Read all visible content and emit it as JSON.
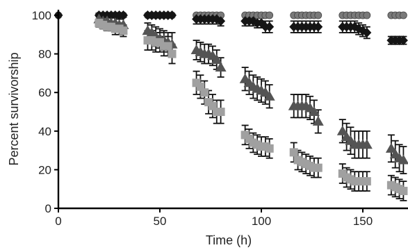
{
  "chart_data": {
    "type": "scatter",
    "xlabel": "Time (h)",
    "ylabel": "Percent survivorship",
    "xlim": [
      0,
      170
    ],
    "ylim": [
      0,
      100
    ],
    "xticks": [
      0,
      50,
      100,
      150
    ],
    "yticks": [
      0,
      20,
      40,
      60,
      80,
      100
    ],
    "xtick_labels": [
      "0",
      "50",
      "100",
      "150"
    ],
    "ytick_labels": [
      "0",
      "20",
      "40",
      "60",
      "80",
      "100"
    ],
    "grid": false,
    "series": [
      {
        "marker": "circle",
        "color": "#7a7a7a",
        "points": [
          {
            "x": 0,
            "y": 100,
            "err": 0
          },
          {
            "x": 20,
            "y": 100,
            "err": 0
          },
          {
            "x": 22,
            "y": 100,
            "err": 0
          },
          {
            "x": 24,
            "y": 100,
            "err": 0
          },
          {
            "x": 26,
            "y": 100,
            "err": 0
          },
          {
            "x": 28,
            "y": 100,
            "err": 0
          },
          {
            "x": 30,
            "y": 100,
            "err": 0
          },
          {
            "x": 32,
            "y": 100,
            "err": 0
          },
          {
            "x": 44,
            "y": 100,
            "err": 0
          },
          {
            "x": 46,
            "y": 100,
            "err": 0
          },
          {
            "x": 48,
            "y": 100,
            "err": 0
          },
          {
            "x": 50,
            "y": 100,
            "err": 0
          },
          {
            "x": 52,
            "y": 100,
            "err": 0
          },
          {
            "x": 54,
            "y": 100,
            "err": 0
          },
          {
            "x": 56,
            "y": 100,
            "err": 0
          },
          {
            "x": 68,
            "y": 100,
            "err": 0
          },
          {
            "x": 70,
            "y": 100,
            "err": 0
          },
          {
            "x": 72,
            "y": 100,
            "err": 0
          },
          {
            "x": 74,
            "y": 100,
            "err": 0
          },
          {
            "x": 76,
            "y": 100,
            "err": 0
          },
          {
            "x": 78,
            "y": 100,
            "err": 0
          },
          {
            "x": 80,
            "y": 100,
            "err": 0
          },
          {
            "x": 92,
            "y": 100,
            "err": 0
          },
          {
            "x": 94,
            "y": 100,
            "err": 0
          },
          {
            "x": 96,
            "y": 100,
            "err": 0
          },
          {
            "x": 98,
            "y": 100,
            "err": 0
          },
          {
            "x": 100,
            "y": 100,
            "err": 0
          },
          {
            "x": 102,
            "y": 100,
            "err": 0
          },
          {
            "x": 104,
            "y": 100,
            "err": 0
          },
          {
            "x": 116,
            "y": 100,
            "err": 0
          },
          {
            "x": 118,
            "y": 100,
            "err": 0
          },
          {
            "x": 120,
            "y": 100,
            "err": 0
          },
          {
            "x": 122,
            "y": 100,
            "err": 0
          },
          {
            "x": 124,
            "y": 100,
            "err": 0
          },
          {
            "x": 126,
            "y": 100,
            "err": 0
          },
          {
            "x": 128,
            "y": 100,
            "err": 0
          },
          {
            "x": 140,
            "y": 100,
            "err": 0
          },
          {
            "x": 142,
            "y": 100,
            "err": 0
          },
          {
            "x": 144,
            "y": 100,
            "err": 0
          },
          {
            "x": 146,
            "y": 100,
            "err": 0
          },
          {
            "x": 148,
            "y": 100,
            "err": 0
          },
          {
            "x": 150,
            "y": 100,
            "err": 0
          },
          {
            "x": 152,
            "y": 100,
            "err": 0
          },
          {
            "x": 164,
            "y": 100,
            "err": 0
          },
          {
            "x": 166,
            "y": 100,
            "err": 0
          },
          {
            "x": 168,
            "y": 100,
            "err": 0
          },
          {
            "x": 170,
            "y": 100,
            "err": 0
          }
        ]
      },
      {
        "marker": "diamond",
        "color": "#151515",
        "points": [
          {
            "x": 0,
            "y": 100,
            "err": 0
          },
          {
            "x": 20,
            "y": 100,
            "err": 0
          },
          {
            "x": 22,
            "y": 100,
            "err": 0
          },
          {
            "x": 24,
            "y": 100,
            "err": 0
          },
          {
            "x": 26,
            "y": 100,
            "err": 0
          },
          {
            "x": 28,
            "y": 100,
            "err": 0
          },
          {
            "x": 30,
            "y": 100,
            "err": 0
          },
          {
            "x": 32,
            "y": 100,
            "err": 0
          },
          {
            "x": 44,
            "y": 100,
            "err": 0
          },
          {
            "x": 46,
            "y": 100,
            "err": 0
          },
          {
            "x": 48,
            "y": 100,
            "err": 0
          },
          {
            "x": 50,
            "y": 100,
            "err": 0
          },
          {
            "x": 52,
            "y": 100,
            "err": 0
          },
          {
            "x": 54,
            "y": 100,
            "err": 0
          },
          {
            "x": 56,
            "y": 100,
            "err": 0
          },
          {
            "x": 68,
            "y": 98,
            "err": 2.5
          },
          {
            "x": 70,
            "y": 98,
            "err": 2.5
          },
          {
            "x": 72,
            "y": 98,
            "err": 2.5
          },
          {
            "x": 74,
            "y": 98,
            "err": 2.5
          },
          {
            "x": 76,
            "y": 98,
            "err": 2.5
          },
          {
            "x": 78,
            "y": 98,
            "err": 2.5
          },
          {
            "x": 80,
            "y": 97,
            "err": 2.5
          },
          {
            "x": 92,
            "y": 97,
            "err": 2.5
          },
          {
            "x": 94,
            "y": 97,
            "err": 2.5
          },
          {
            "x": 96,
            "y": 97,
            "err": 2.5
          },
          {
            "x": 98,
            "y": 96,
            "err": 2.5
          },
          {
            "x": 100,
            "y": 96,
            "err": 2.5
          },
          {
            "x": 102,
            "y": 94,
            "err": 3
          },
          {
            "x": 104,
            "y": 94,
            "err": 3
          },
          {
            "x": 116,
            "y": 94,
            "err": 3
          },
          {
            "x": 118,
            "y": 94,
            "err": 3
          },
          {
            "x": 120,
            "y": 94,
            "err": 3
          },
          {
            "x": 122,
            "y": 94,
            "err": 3
          },
          {
            "x": 124,
            "y": 94,
            "err": 3
          },
          {
            "x": 126,
            "y": 94,
            "err": 3
          },
          {
            "x": 128,
            "y": 94,
            "err": 3
          },
          {
            "x": 140,
            "y": 94,
            "err": 3
          },
          {
            "x": 142,
            "y": 94,
            "err": 3
          },
          {
            "x": 144,
            "y": 94,
            "err": 3
          },
          {
            "x": 146,
            "y": 94,
            "err": 3
          },
          {
            "x": 148,
            "y": 93,
            "err": 3
          },
          {
            "x": 150,
            "y": 92,
            "err": 3
          },
          {
            "x": 152,
            "y": 91,
            "err": 3
          },
          {
            "x": 164,
            "y": 87,
            "err": 2
          },
          {
            "x": 166,
            "y": 87,
            "err": 2
          },
          {
            "x": 168,
            "y": 87,
            "err": 2
          },
          {
            "x": 170,
            "y": 87,
            "err": 2
          }
        ]
      },
      {
        "marker": "triangle",
        "color": "#545454",
        "points": [
          {
            "x": 20,
            "y": 98,
            "err": 3
          },
          {
            "x": 22,
            "y": 97,
            "err": 3
          },
          {
            "x": 24,
            "y": 97,
            "err": 3
          },
          {
            "x": 26,
            "y": 96,
            "err": 3
          },
          {
            "x": 28,
            "y": 96,
            "err": 3
          },
          {
            "x": 30,
            "y": 95,
            "err": 3
          },
          {
            "x": 32,
            "y": 95,
            "err": 4
          },
          {
            "x": 44,
            "y": 92,
            "err": 4
          },
          {
            "x": 46,
            "y": 91,
            "err": 4
          },
          {
            "x": 48,
            "y": 89,
            "err": 5
          },
          {
            "x": 50,
            "y": 88,
            "err": 5
          },
          {
            "x": 52,
            "y": 87,
            "err": 5
          },
          {
            "x": 54,
            "y": 86,
            "err": 5
          },
          {
            "x": 56,
            "y": 85,
            "err": 6
          },
          {
            "x": 68,
            "y": 82,
            "err": 5
          },
          {
            "x": 70,
            "y": 81,
            "err": 5
          },
          {
            "x": 72,
            "y": 80,
            "err": 5
          },
          {
            "x": 74,
            "y": 80,
            "err": 5
          },
          {
            "x": 76,
            "y": 79,
            "err": 5
          },
          {
            "x": 78,
            "y": 77,
            "err": 5
          },
          {
            "x": 80,
            "y": 73,
            "err": 5
          },
          {
            "x": 92,
            "y": 67,
            "err": 6
          },
          {
            "x": 94,
            "y": 65,
            "err": 6
          },
          {
            "x": 96,
            "y": 63,
            "err": 6
          },
          {
            "x": 98,
            "y": 62,
            "err": 6
          },
          {
            "x": 100,
            "y": 61,
            "err": 6
          },
          {
            "x": 102,
            "y": 60,
            "err": 6
          },
          {
            "x": 104,
            "y": 58,
            "err": 6
          },
          {
            "x": 116,
            "y": 53,
            "err": 6
          },
          {
            "x": 118,
            "y": 53,
            "err": 6
          },
          {
            "x": 120,
            "y": 53,
            "err": 6
          },
          {
            "x": 122,
            "y": 53,
            "err": 6
          },
          {
            "x": 124,
            "y": 52,
            "err": 6
          },
          {
            "x": 126,
            "y": 50,
            "err": 6
          },
          {
            "x": 128,
            "y": 45,
            "err": 6
          },
          {
            "x": 140,
            "y": 40,
            "err": 6
          },
          {
            "x": 142,
            "y": 37,
            "err": 7
          },
          {
            "x": 144,
            "y": 35,
            "err": 7
          },
          {
            "x": 146,
            "y": 33,
            "err": 7
          },
          {
            "x": 148,
            "y": 33,
            "err": 7
          },
          {
            "x": 150,
            "y": 33,
            "err": 7
          },
          {
            "x": 152,
            "y": 33,
            "err": 7
          },
          {
            "x": 164,
            "y": 31,
            "err": 7
          },
          {
            "x": 166,
            "y": 28,
            "err": 7
          },
          {
            "x": 168,
            "y": 26,
            "err": 7
          },
          {
            "x": 170,
            "y": 25,
            "err": 7
          }
        ]
      },
      {
        "marker": "square",
        "color": "#a0a0a0",
        "points": [
          {
            "x": 20,
            "y": 96,
            "err": 2
          },
          {
            "x": 22,
            "y": 95,
            "err": 2
          },
          {
            "x": 24,
            "y": 94,
            "err": 2
          },
          {
            "x": 26,
            "y": 94,
            "err": 2
          },
          {
            "x": 28,
            "y": 93,
            "err": 3
          },
          {
            "x": 30,
            "y": 93,
            "err": 3
          },
          {
            "x": 32,
            "y": 92,
            "err": 3
          },
          {
            "x": 44,
            "y": 87,
            "err": 5
          },
          {
            "x": 46,
            "y": 87,
            "err": 5
          },
          {
            "x": 48,
            "y": 86,
            "err": 5
          },
          {
            "x": 50,
            "y": 86,
            "err": 5
          },
          {
            "x": 52,
            "y": 84,
            "err": 5
          },
          {
            "x": 54,
            "y": 84,
            "err": 5
          },
          {
            "x": 56,
            "y": 80,
            "err": 5
          },
          {
            "x": 68,
            "y": 65,
            "err": 6
          },
          {
            "x": 70,
            "y": 63,
            "err": 6
          },
          {
            "x": 72,
            "y": 60,
            "err": 6
          },
          {
            "x": 74,
            "y": 55,
            "err": 6
          },
          {
            "x": 76,
            "y": 53,
            "err": 6
          },
          {
            "x": 78,
            "y": 50,
            "err": 6
          },
          {
            "x": 80,
            "y": 50,
            "err": 6
          },
          {
            "x": 92,
            "y": 38,
            "err": 5
          },
          {
            "x": 94,
            "y": 36,
            "err": 5
          },
          {
            "x": 96,
            "y": 34,
            "err": 5
          },
          {
            "x": 98,
            "y": 33,
            "err": 5
          },
          {
            "x": 100,
            "y": 32,
            "err": 5
          },
          {
            "x": 102,
            "y": 32,
            "err": 5
          },
          {
            "x": 104,
            "y": 31,
            "err": 5
          },
          {
            "x": 116,
            "y": 29,
            "err": 5
          },
          {
            "x": 118,
            "y": 25,
            "err": 5
          },
          {
            "x": 120,
            "y": 24,
            "err": 5
          },
          {
            "x": 122,
            "y": 23,
            "err": 5
          },
          {
            "x": 124,
            "y": 22,
            "err": 5
          },
          {
            "x": 126,
            "y": 21,
            "err": 5
          },
          {
            "x": 128,
            "y": 21,
            "err": 5
          },
          {
            "x": 140,
            "y": 18,
            "err": 5
          },
          {
            "x": 142,
            "y": 16,
            "err": 5
          },
          {
            "x": 144,
            "y": 15,
            "err": 5
          },
          {
            "x": 146,
            "y": 14,
            "err": 5
          },
          {
            "x": 148,
            "y": 14,
            "err": 5
          },
          {
            "x": 150,
            "y": 14,
            "err": 5
          },
          {
            "x": 152,
            "y": 14,
            "err": 5
          },
          {
            "x": 164,
            "y": 12,
            "err": 5
          },
          {
            "x": 166,
            "y": 11,
            "err": 5
          },
          {
            "x": 168,
            "y": 10,
            "err": 5
          },
          {
            "x": 170,
            "y": 9,
            "err": 5
          }
        ]
      }
    ]
  }
}
